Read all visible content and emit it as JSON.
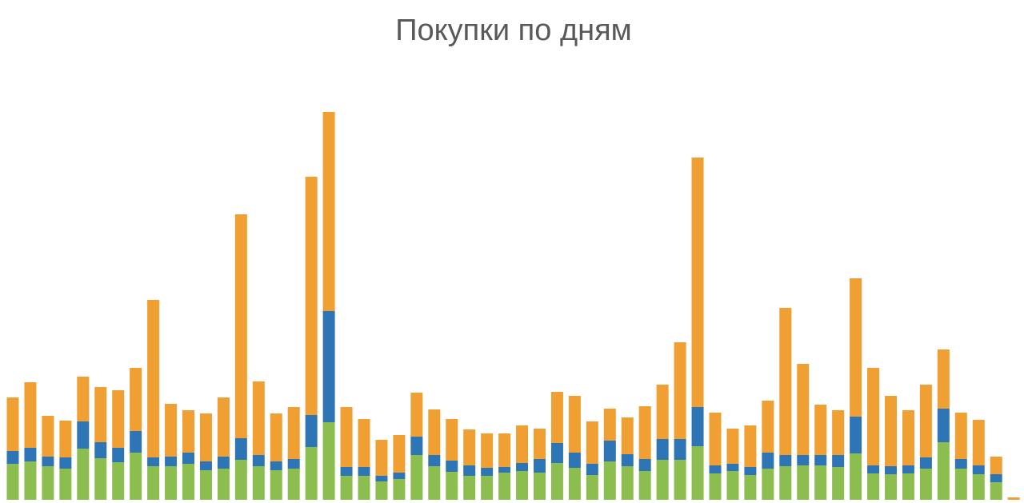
{
  "chart_data": {
    "type": "stacked_bar",
    "title": "Покупки по дням",
    "categories": [
      null,
      null,
      null,
      null,
      null,
      null,
      null,
      null,
      null,
      null,
      null,
      null,
      null,
      null,
      null,
      null,
      null,
      null,
      null,
      null,
      null,
      null,
      null,
      null,
      null,
      null,
      null,
      null,
      null,
      null,
      null,
      null,
      null,
      null,
      null,
      null,
      null,
      null,
      null,
      null,
      null,
      null,
      null,
      null,
      null,
      null,
      null,
      null,
      null,
      null,
      null,
      null,
      null,
      null,
      null,
      null,
      null,
      null
    ],
    "series": [
      {
        "color": "#8cbd4f",
        "values": [
          45,
          48,
          42,
          39,
          64,
          52,
          47,
          59,
          42,
          42,
          45,
          37,
          39,
          50,
          42,
          37,
          39,
          66,
          97,
          30,
          30,
          23,
          26,
          56,
          42,
          35,
          30,
          30,
          34,
          36,
          34,
          46,
          40,
          31,
          48,
          42,
          36,
          50,
          50,
          67,
          33,
          36,
          31,
          39,
          42,
          43,
          43,
          41,
          58,
          33,
          32,
          33,
          39,
          72,
          39,
          32,
          22,
          0
        ]
      },
      {
        "color": "#2e75b6",
        "values": [
          16,
          17,
          12,
          14,
          34,
          20,
          18,
          27,
          11,
          12,
          14,
          11,
          15,
          27,
          14,
          11,
          12,
          40,
          139,
          11,
          11,
          7,
          8,
          23,
          14,
          14,
          13,
          10,
          7,
          10,
          17,
          25,
          19,
          14,
          26,
          15,
          15,
          26,
          26,
          49,
          10,
          9,
          10,
          20,
          14,
          13,
          13,
          15,
          46,
          10,
          10,
          10,
          14,
          42,
          12,
          11,
          10,
          0
        ]
      },
      {
        "color": "#f09f33",
        "values": [
          67,
          82,
          51,
          46,
          56,
          69,
          72,
          79,
          197,
          66,
          53,
          60,
          74,
          280,
          92,
          60,
          65,
          298,
          249,
          75,
          60,
          45,
          47,
          55,
          57,
          52,
          45,
          43,
          42,
          47,
          38,
          64,
          71,
          53,
          40,
          46,
          66,
          68,
          121,
          312,
          66,
          44,
          52,
          65,
          184,
          114,
          63,
          56,
          173,
          122,
          88,
          69,
          91,
          74,
          58,
          57,
          22,
          3
        ]
      }
    ]
  }
}
